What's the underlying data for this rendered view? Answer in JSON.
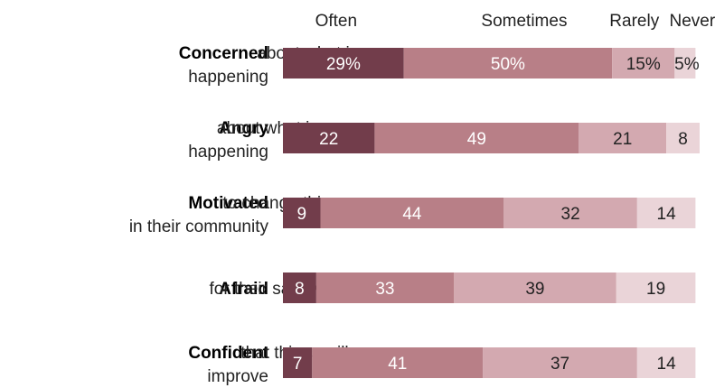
{
  "chart_data": {
    "type": "bar",
    "orientation": "horizontal",
    "stacked": true,
    "legend_placement": "top",
    "grid": false,
    "xlim": [
      0,
      100
    ],
    "series": [
      {
        "name": "Often",
        "color": "#723d4b",
        "text_color": "#ffffff"
      },
      {
        "name": "Sometimes",
        "color": "#b87f87",
        "text_color": "#ffffff"
      },
      {
        "name": "Rarely",
        "color": "#d3a9b0",
        "text_color": "#222222"
      },
      {
        "name": "Never",
        "color": "#ead4d8",
        "text_color": "#222222"
      }
    ],
    "categories": [
      {
        "bold": "Concerned",
        "rest_line1": " about what is",
        "rest_line2": "happening"
      },
      {
        "bold": "Angry",
        "rest_line1": " about what is",
        "rest_line2": "happening"
      },
      {
        "bold": "Motivated",
        "rest_line1": " to change things",
        "rest_line2": "in their community"
      },
      {
        "bold": "Afraid",
        "rest_line1": " for their safety",
        "rest_line2": ""
      },
      {
        "bold": "Confident",
        "rest_line1": " that things will",
        "rest_line2": "improve"
      }
    ],
    "values": [
      [
        29,
        50,
        15,
        5
      ],
      [
        22,
        49,
        21,
        8
      ],
      [
        9,
        44,
        32,
        14
      ],
      [
        8,
        33,
        39,
        19
      ],
      [
        7,
        41,
        37,
        14
      ]
    ],
    "value_labels": [
      [
        "29%",
        "50%",
        "15%",
        "5%"
      ],
      [
        "22",
        "49",
        "21",
        "8"
      ],
      [
        "9",
        "44",
        "32",
        "14"
      ],
      [
        "8",
        "33",
        "39",
        "19"
      ],
      [
        "7",
        "41",
        "37",
        "14"
      ]
    ]
  }
}
